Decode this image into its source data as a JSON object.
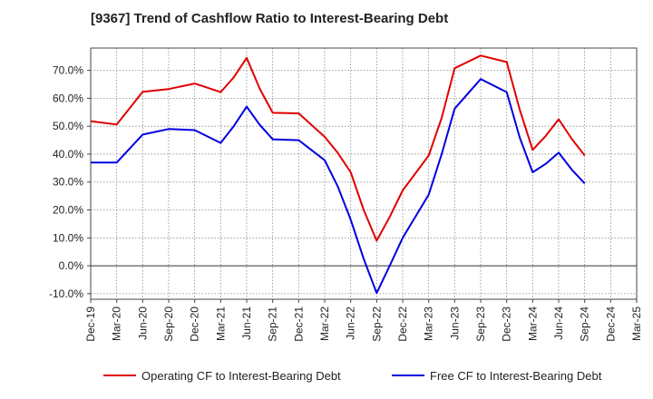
{
  "chart_data": {
    "type": "line",
    "title": "[9367]  Trend of Cashflow Ratio to Interest-Bearing Debt",
    "xlabel": "",
    "ylabel": "",
    "ylim": [
      -12,
      78
    ],
    "yticks": [
      -10,
      0,
      10,
      20,
      30,
      40,
      50,
      60,
      70
    ],
    "ytick_labels": [
      "-10.0%",
      "0.0%",
      "10.0%",
      "20.0%",
      "30.0%",
      "40.0%",
      "50.0%",
      "60.0%",
      "70.0%"
    ],
    "x_categories": [
      "Dec-19",
      "Mar-20",
      "Jun-20",
      "Sep-20",
      "Dec-20",
      "Mar-21",
      "Jun-21",
      "Sep-21",
      "Dec-21",
      "Mar-22",
      "Jun-22",
      "Sep-22",
      "Dec-22",
      "Mar-23",
      "Jun-23",
      "Sep-23",
      "Dec-23",
      "Mar-24",
      "Jun-24",
      "Sep-24",
      "Dec-24",
      "Mar-25"
    ],
    "grid": true,
    "legend_position": "bottom",
    "series": [
      {
        "name": "Operating CF to Interest-Bearing Debt",
        "color": "#e00000",
        "points": [
          [
            0,
            51.8
          ],
          [
            1,
            50.6
          ],
          [
            2,
            62.3
          ],
          [
            3,
            63.3
          ],
          [
            4,
            65.3
          ],
          [
            5,
            62.2
          ],
          [
            5.5,
            67.5
          ],
          [
            6,
            74.5
          ],
          [
            6.5,
            63.5
          ],
          [
            7,
            54.8
          ],
          [
            8,
            54.6
          ],
          [
            9,
            46.2
          ],
          [
            9.5,
            40.5
          ],
          [
            10,
            33.5
          ],
          [
            10.5,
            20.0
          ],
          [
            11,
            9.0
          ],
          [
            11.5,
            17.5
          ],
          [
            12,
            27.0
          ],
          [
            13,
            39.5
          ],
          [
            13.5,
            53.0
          ],
          [
            14,
            70.8
          ],
          [
            15,
            75.3
          ],
          [
            16,
            73.0
          ],
          [
            16.5,
            56.0
          ],
          [
            17,
            41.5
          ],
          [
            17.5,
            46.5
          ],
          [
            18,
            52.5
          ],
          [
            18.5,
            45.5
          ],
          [
            19,
            39.5
          ]
        ]
      },
      {
        "name": "Free CF to Interest-Bearing Debt",
        "color": "#0000e0",
        "points": [
          [
            0,
            37.0
          ],
          [
            1,
            37.0
          ],
          [
            2,
            47.0
          ],
          [
            3,
            49.0
          ],
          [
            4,
            48.6
          ],
          [
            5,
            44.0
          ],
          [
            5.5,
            50.0
          ],
          [
            6,
            57.0
          ],
          [
            6.5,
            50.5
          ],
          [
            7,
            45.3
          ],
          [
            8,
            45.0
          ],
          [
            9,
            37.8
          ],
          [
            9.5,
            28.5
          ],
          [
            10,
            16.5
          ],
          [
            10.5,
            2.5
          ],
          [
            11,
            -9.8
          ],
          [
            11.5,
            0.0
          ],
          [
            12,
            10.0
          ],
          [
            13,
            25.5
          ],
          [
            13.5,
            40.0
          ],
          [
            14,
            56.3
          ],
          [
            15,
            66.9
          ],
          [
            16,
            62.2
          ],
          [
            16.5,
            46.0
          ],
          [
            17,
            33.5
          ],
          [
            17.5,
            36.5
          ],
          [
            18,
            40.5
          ],
          [
            18.5,
            34.5
          ],
          [
            19,
            29.5
          ]
        ]
      }
    ]
  }
}
